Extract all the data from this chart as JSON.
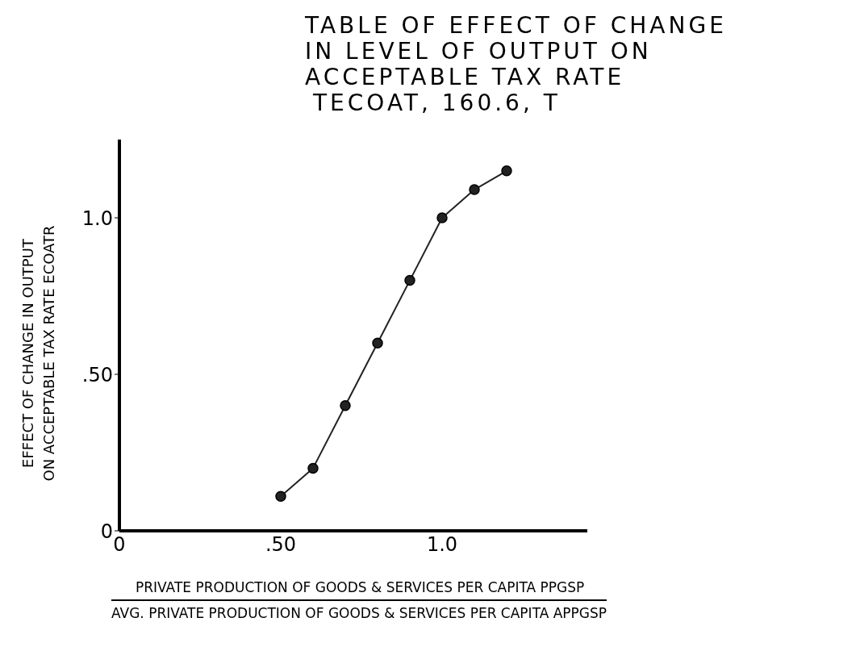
{
  "chart_data": {
    "type": "line",
    "title": "TABLE OF EFFECT OF CHANGE\nIN LEVEL OF OUTPUT ON\nACCEPTABLE TAX RATE",
    "subtitle": "TECOAT, 160.6, T",
    "xlabel": "PRIVATE PRODUCTION OF GOODS & SERVICES PER CAPITA PPGSP\nAVG. PRIVATE PRODUCTION OF GOODS & SERVICES PER CAPITA APPGSP",
    "ylabel": "EFFECT OF CHANGE IN OUTPUT\nON ACCEPTABLE TAX RATE ECOATR",
    "x": [
      0.5,
      0.6,
      0.7,
      0.8,
      0.9,
      1.0,
      1.1,
      1.2
    ],
    "series": [
      {
        "color": "#222222",
        "values": [
          0.11,
          0.2,
          0.4,
          0.6,
          0.8,
          1.0,
          1.09,
          1.15
        ]
      }
    ],
    "xlim": [
      0,
      1.45
    ],
    "xticks": [
      0,
      {
        "value": 0.5,
        "label": ".50"
      },
      {
        "value": 1.0,
        "label": "1.0"
      }
    ],
    "ylim": [
      0,
      1.25
    ],
    "yticks": [
      0,
      {
        "value": 0.5,
        "label": ".50"
      },
      {
        "value": 1.0,
        "label": "1.0"
      }
    ],
    "grid": false,
    "marker": "circle",
    "line_style": "solid"
  }
}
